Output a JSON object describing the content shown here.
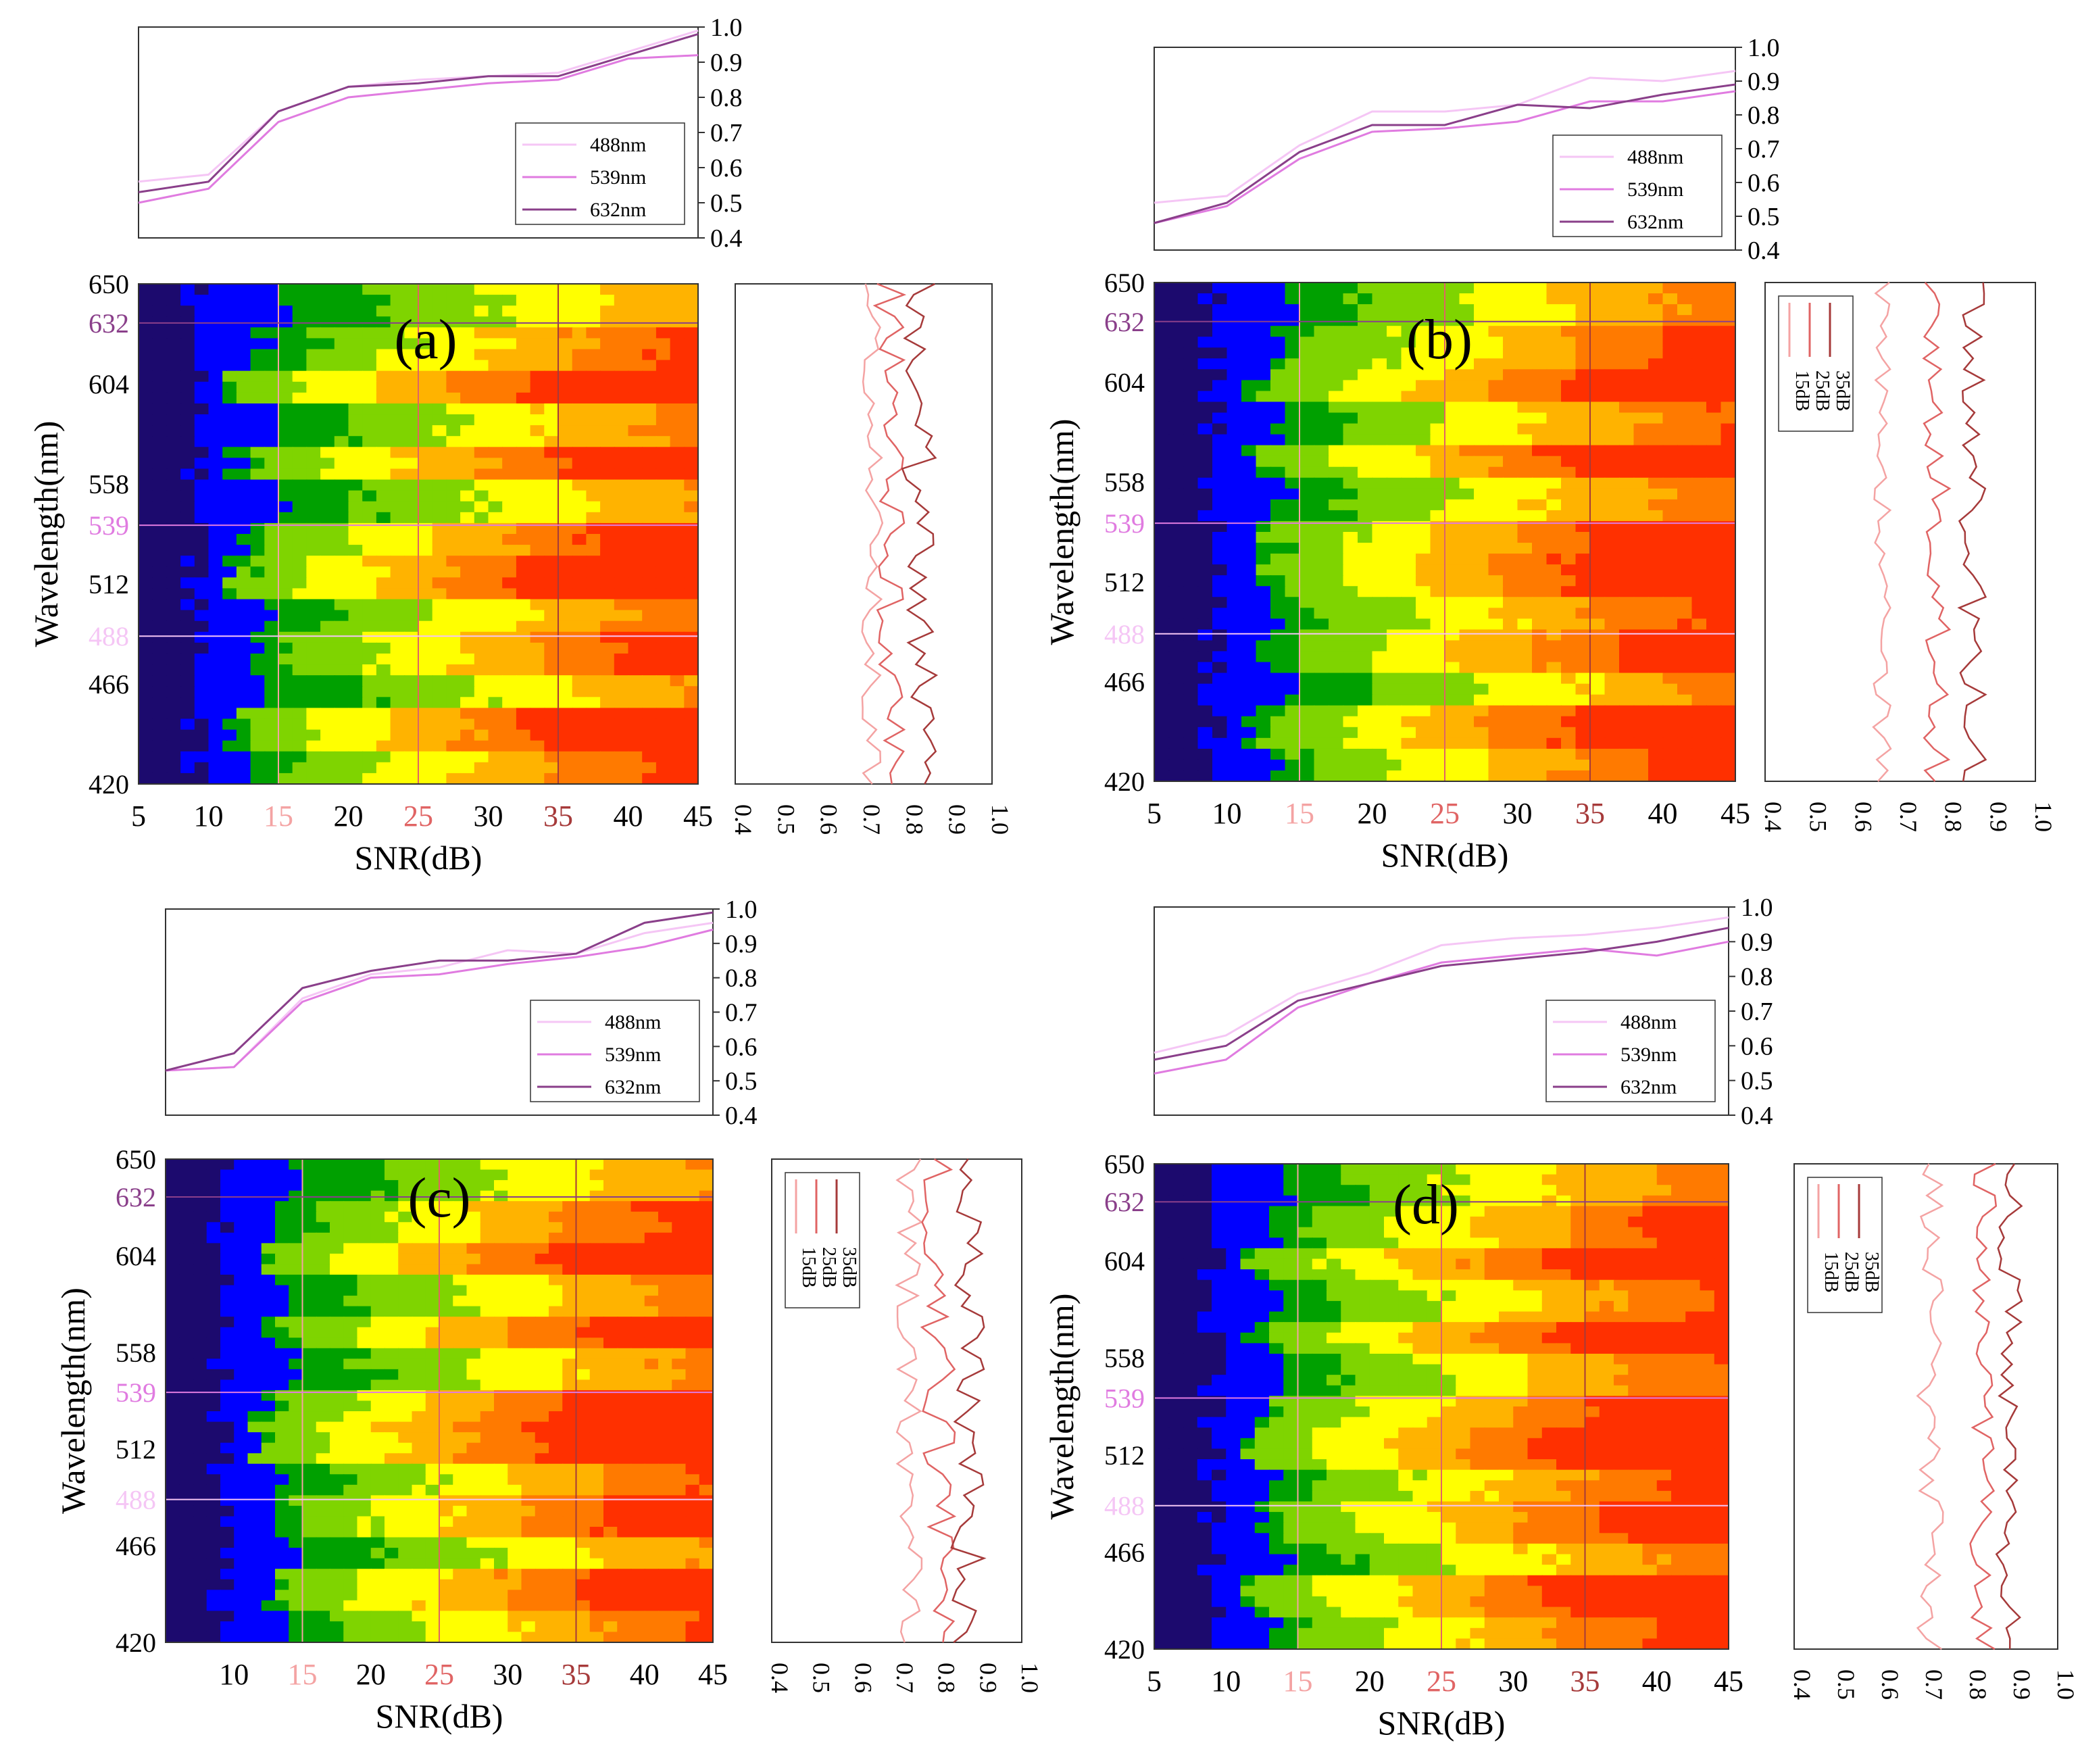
{
  "figure": {
    "description_free": true,
    "axis_labels": {
      "x": "SNR(dB)",
      "y": "Wavelength(nm)"
    },
    "colors": {
      "c488": "#f5c6f5",
      "c539": "#e07be0",
      "c632": "#8a3f8a",
      "c15": "#f4a3a3",
      "c25": "#e06464",
      "c35": "#a63a3a",
      "frame": "#333333",
      "tick_black": "#000000"
    },
    "colormap": [
      "#1c0a6e",
      "#0000ff",
      "#00a000",
      "#7fd400",
      "#ffff00",
      "#ffb300",
      "#ff7a00",
      "#ff3000"
    ]
  },
  "chart_data": [
    {
      "panel": "(a)",
      "type": "heatmap",
      "x_ticks": [
        {
          "label": "5",
          "v": 5,
          "color": "black"
        },
        {
          "label": "10",
          "v": 10,
          "color": "black"
        },
        {
          "label": "15",
          "v": 15,
          "color": "c15"
        },
        {
          "label": "20",
          "v": 20,
          "color": "black"
        },
        {
          "label": "25",
          "v": 25,
          "color": "c25"
        },
        {
          "label": "30",
          "v": 30,
          "color": "black"
        },
        {
          "label": "35",
          "v": 35,
          "color": "c35"
        },
        {
          "label": "40",
          "v": 40,
          "color": "black"
        },
        {
          "label": "45",
          "v": 45,
          "color": "black"
        }
      ],
      "y_ticks": [
        {
          "label": "650",
          "v": 650,
          "color": "black"
        },
        {
          "label": "632",
          "v": 632,
          "color": "c632"
        },
        {
          "label": "604",
          "v": 604,
          "color": "black"
        },
        {
          "label": "558",
          "v": 558,
          "color": "black"
        },
        {
          "label": "539",
          "v": 539,
          "color": "c539"
        },
        {
          "label": "512",
          "v": 512,
          "color": "black"
        },
        {
          "label": "488",
          "v": 488,
          "color": "c488"
        },
        {
          "label": "466",
          "v": 466,
          "color": "black"
        },
        {
          "label": "420",
          "v": 420,
          "color": "black"
        }
      ],
      "xlim": [
        5,
        45
      ],
      "ylim": [
        420,
        650
      ],
      "top_plot": {
        "ylim": [
          0.4,
          1.0
        ],
        "yticks": [
          "0.4",
          "0.5",
          "0.6",
          "0.7",
          "0.8",
          "0.9",
          "1.0"
        ],
        "legend": [
          "488nm",
          "539nm",
          "632nm"
        ],
        "x": [
          5,
          10,
          15,
          20,
          25,
          30,
          35,
          40,
          45
        ],
        "series": [
          {
            "name": "488nm",
            "color": "c488",
            "values": [
              0.56,
              0.58,
              0.76,
              0.83,
              0.85,
              0.86,
              0.87,
              0.93,
              0.99
            ]
          },
          {
            "name": "539nm",
            "color": "c539",
            "values": [
              0.5,
              0.54,
              0.73,
              0.8,
              0.82,
              0.84,
              0.85,
              0.91,
              0.92
            ]
          },
          {
            "name": "632nm",
            "color": "c632",
            "values": [
              0.53,
              0.56,
              0.76,
              0.83,
              0.84,
              0.86,
              0.86,
              0.92,
              0.98
            ]
          }
        ]
      },
      "side_plot": {
        "xlim": [
          0.4,
          1.0
        ],
        "xticks": [
          "0.4",
          "0.5",
          "0.6",
          "0.7",
          "0.8",
          "0.9",
          "1.0"
        ],
        "legend": [],
        "series": [
          {
            "name": "15dB",
            "color": "c15",
            "center": 0.72,
            "amp": 0.025
          },
          {
            "name": "25dB",
            "color": "c25",
            "center": 0.76,
            "amp": 0.035
          },
          {
            "name": "35dB",
            "color": "c35",
            "center": 0.83,
            "amp": 0.04
          }
        ]
      },
      "heatmap": {
        "profile": "a",
        "bands": [
          0.15,
          0.45,
          0.9,
          0.3,
          0.8,
          0.2,
          0.7,
          0.95,
          0.35,
          0.6,
          0.15,
          0.85,
          0.5
        ]
      }
    },
    {
      "panel": "(b)",
      "type": "heatmap",
      "x_ticks": [
        {
          "label": "5",
          "v": 5,
          "color": "black"
        },
        {
          "label": "10",
          "v": 10,
          "color": "black"
        },
        {
          "label": "15",
          "v": 15,
          "color": "c15"
        },
        {
          "label": "20",
          "v": 20,
          "color": "black"
        },
        {
          "label": "25",
          "v": 25,
          "color": "c25"
        },
        {
          "label": "30",
          "v": 30,
          "color": "black"
        },
        {
          "label": "35",
          "v": 35,
          "color": "c35"
        },
        {
          "label": "40",
          "v": 40,
          "color": "black"
        },
        {
          "label": "45",
          "v": 45,
          "color": "black"
        }
      ],
      "y_ticks": [
        {
          "label": "650",
          "v": 650,
          "color": "black"
        },
        {
          "label": "632",
          "v": 632,
          "color": "c632"
        },
        {
          "label": "604",
          "v": 604,
          "color": "black"
        },
        {
          "label": "558",
          "v": 558,
          "color": "black"
        },
        {
          "label": "539",
          "v": 539,
          "color": "c539"
        },
        {
          "label": "512",
          "v": 512,
          "color": "black"
        },
        {
          "label": "488",
          "v": 488,
          "color": "c488"
        },
        {
          "label": "466",
          "v": 466,
          "color": "black"
        },
        {
          "label": "420",
          "v": 420,
          "color": "black"
        }
      ],
      "xlim": [
        5,
        45
      ],
      "ylim": [
        420,
        650
      ],
      "top_plot": {
        "ylim": [
          0.4,
          1.0
        ],
        "yticks": [
          "0.4",
          "0.5",
          "0.6",
          "0.7",
          "0.8",
          "0.9",
          "1.0"
        ],
        "legend": [
          "488nm",
          "539nm",
          "632nm"
        ],
        "x": [
          5,
          10,
          15,
          20,
          25,
          30,
          35,
          40,
          45
        ],
        "series": [
          {
            "name": "488nm",
            "color": "c488",
            "values": [
              0.54,
              0.56,
              0.71,
              0.81,
              0.81,
              0.83,
              0.91,
              0.9,
              0.93
            ]
          },
          {
            "name": "539nm",
            "color": "c539",
            "values": [
              0.48,
              0.53,
              0.67,
              0.75,
              0.76,
              0.78,
              0.84,
              0.84,
              0.87
            ]
          },
          {
            "name": "632nm",
            "color": "c632",
            "values": [
              0.48,
              0.54,
              0.69,
              0.77,
              0.77,
              0.83,
              0.82,
              0.86,
              0.89
            ]
          }
        ]
      },
      "side_plot": {
        "xlim": [
          0.4,
          1.0
        ],
        "xticks": [
          "0.4",
          "0.5",
          "0.6",
          "0.7",
          "0.8",
          "0.9",
          "1.0"
        ],
        "legend": [
          "35dB",
          "25dB",
          "15dB"
        ],
        "series": [
          {
            "name": "15dB",
            "color": "c15",
            "center": 0.66,
            "amp": 0.02
          },
          {
            "name": "25dB",
            "color": "c25",
            "center": 0.78,
            "amp": 0.03
          },
          {
            "name": "35dB",
            "color": "c35",
            "center": 0.86,
            "amp": 0.03
          }
        ]
      },
      "heatmap": {
        "profile": "b",
        "bands": [
          0.3,
          0.6,
          0.85,
          0.4,
          0.9,
          0.35,
          0.75,
          0.9,
          0.5,
          0.7,
          0.3,
          0.85,
          0.6
        ]
      }
    },
    {
      "panel": "(c)",
      "type": "heatmap",
      "x_ticks": [
        {
          "label": "10",
          "v": 10,
          "color": "black"
        },
        {
          "label": "15",
          "v": 15,
          "color": "c15"
        },
        {
          "label": "20",
          "v": 20,
          "color": "black"
        },
        {
          "label": "25",
          "v": 25,
          "color": "c25"
        },
        {
          "label": "30",
          "v": 30,
          "color": "black"
        },
        {
          "label": "35",
          "v": 35,
          "color": "c35"
        },
        {
          "label": "40",
          "v": 40,
          "color": "black"
        },
        {
          "label": "45",
          "v": 45,
          "color": "black"
        }
      ],
      "y_ticks": [
        {
          "label": "650",
          "v": 650,
          "color": "black"
        },
        {
          "label": "632",
          "v": 632,
          "color": "c632"
        },
        {
          "label": "604",
          "v": 604,
          "color": "black"
        },
        {
          "label": "558",
          "v": 558,
          "color": "black"
        },
        {
          "label": "539",
          "v": 539,
          "color": "c539"
        },
        {
          "label": "512",
          "v": 512,
          "color": "black"
        },
        {
          "label": "488",
          "v": 488,
          "color": "c488"
        },
        {
          "label": "466",
          "v": 466,
          "color": "black"
        },
        {
          "label": "420",
          "v": 420,
          "color": "black"
        }
      ],
      "xlim": [
        5,
        45
      ],
      "ylim": [
        420,
        650
      ],
      "top_plot": {
        "ylim": [
          0.4,
          1.0
        ],
        "yticks": [
          "0.4",
          "0.5",
          "0.6",
          "0.7",
          "0.8",
          "0.9",
          "1.0"
        ],
        "legend": [
          "488nm",
          "539nm",
          "632nm"
        ],
        "x": [
          5,
          10,
          15,
          20,
          25,
          30,
          35,
          40,
          45
        ],
        "series": [
          {
            "name": "488nm",
            "color": "c488",
            "values": [
              0.53,
              0.54,
              0.74,
              0.81,
              0.83,
              0.88,
              0.87,
              0.93,
              0.96
            ]
          },
          {
            "name": "539nm",
            "color": "c539",
            "values": [
              0.53,
              0.54,
              0.73,
              0.8,
              0.81,
              0.84,
              0.86,
              0.89,
              0.94
            ]
          },
          {
            "name": "632nm",
            "color": "c632",
            "values": [
              0.53,
              0.58,
              0.77,
              0.82,
              0.85,
              0.85,
              0.87,
              0.96,
              0.99
            ]
          }
        ]
      },
      "side_plot": {
        "xlim": [
          0.4,
          1.0
        ],
        "xticks": [
          "0.4",
          "0.5",
          "0.6",
          "0.7",
          "0.8",
          "0.9",
          "1.0"
        ],
        "legend": [
          "35dB",
          "25dB",
          "15dB"
        ],
        "series": [
          {
            "name": "15dB",
            "color": "c15",
            "center": 0.73,
            "amp": 0.03
          },
          {
            "name": "25dB",
            "color": "c25",
            "center": 0.8,
            "amp": 0.04
          },
          {
            "name": "35dB",
            "color": "c35",
            "center": 0.87,
            "amp": 0.04
          }
        ]
      },
      "heatmap": {
        "profile": "c",
        "bands": [
          0.2,
          0.55,
          0.9,
          0.3,
          0.75,
          0.25,
          0.85,
          0.95,
          0.4,
          0.7,
          0.2,
          0.8,
          0.45
        ]
      }
    },
    {
      "panel": "(d)",
      "type": "heatmap",
      "x_ticks": [
        {
          "label": "5",
          "v": 5,
          "color": "black"
        },
        {
          "label": "10",
          "v": 10,
          "color": "black"
        },
        {
          "label": "15",
          "v": 15,
          "color": "c15"
        },
        {
          "label": "20",
          "v": 20,
          "color": "black"
        },
        {
          "label": "25",
          "v": 25,
          "color": "c25"
        },
        {
          "label": "30",
          "v": 30,
          "color": "black"
        },
        {
          "label": "35",
          "v": 35,
          "color": "c35"
        },
        {
          "label": "40",
          "v": 40,
          "color": "black"
        },
        {
          "label": "45",
          "v": 45,
          "color": "black"
        }
      ],
      "y_ticks": [
        {
          "label": "650",
          "v": 650,
          "color": "black"
        },
        {
          "label": "632",
          "v": 632,
          "color": "c632"
        },
        {
          "label": "604",
          "v": 604,
          "color": "black"
        },
        {
          "label": "558",
          "v": 558,
          "color": "black"
        },
        {
          "label": "539",
          "v": 539,
          "color": "c539"
        },
        {
          "label": "512",
          "v": 512,
          "color": "black"
        },
        {
          "label": "488",
          "v": 488,
          "color": "c488"
        },
        {
          "label": "466",
          "v": 466,
          "color": "black"
        },
        {
          "label": "420",
          "v": 420,
          "color": "black"
        }
      ],
      "xlim": [
        5,
        45
      ],
      "ylim": [
        420,
        650
      ],
      "top_plot": {
        "ylim": [
          0.4,
          1.0
        ],
        "yticks": [
          "0.4",
          "0.5",
          "0.6",
          "0.7",
          "0.8",
          "0.9",
          "1.0"
        ],
        "legend": [
          "488nm",
          "539nm",
          "632nm"
        ],
        "x": [
          5,
          10,
          15,
          20,
          25,
          30,
          35,
          40,
          45
        ],
        "series": [
          {
            "name": "488nm",
            "color": "c488",
            "values": [
              0.58,
              0.63,
              0.75,
              0.81,
              0.89,
              0.91,
              0.92,
              0.94,
              0.97
            ]
          },
          {
            "name": "539nm",
            "color": "c539",
            "values": [
              0.52,
              0.56,
              0.71,
              0.78,
              0.84,
              0.86,
              0.88,
              0.86,
              0.9
            ]
          },
          {
            "name": "632nm",
            "color": "c632",
            "values": [
              0.56,
              0.6,
              0.73,
              0.78,
              0.83,
              0.85,
              0.87,
              0.9,
              0.94
            ]
          }
        ]
      },
      "side_plot": {
        "xlim": [
          0.4,
          1.0
        ],
        "xticks": [
          "0.4",
          "0.5",
          "0.6",
          "0.7",
          "0.8",
          "0.9",
          "1.0"
        ],
        "legend": [
          "35dB",
          "25dB",
          "15dB"
        ],
        "series": [
          {
            "name": "15dB",
            "color": "c15",
            "center": 0.71,
            "amp": 0.03
          },
          {
            "name": "25dB",
            "color": "c25",
            "center": 0.83,
            "amp": 0.03
          },
          {
            "name": "35dB",
            "color": "c35",
            "center": 0.89,
            "amp": 0.03
          }
        ]
      },
      "heatmap": {
        "profile": "d",
        "bands": [
          0.35,
          0.6,
          0.9,
          0.45,
          0.85,
          0.4,
          0.8,
          0.95,
          0.55,
          0.75,
          0.35,
          0.9,
          0.6
        ]
      }
    }
  ]
}
